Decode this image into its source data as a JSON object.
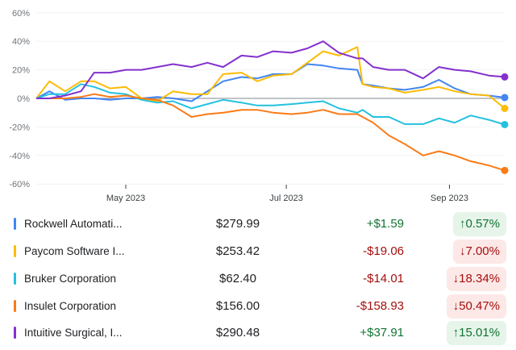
{
  "chart_data": {
    "type": "line",
    "ylabel": "",
    "xlabel": "",
    "ylim": [
      -60,
      60
    ],
    "yticks": [
      "60%",
      "40%",
      "20%",
      "0%",
      "-20%",
      "-40%",
      "-60%"
    ],
    "ytick_values": [
      60,
      40,
      20,
      0,
      -20,
      -40,
      -60
    ],
    "xlim": [
      "2023-03-28",
      "2023-09-22"
    ],
    "xticks": [
      {
        "date": "2023-05-01",
        "label": "May 2023"
      },
      {
        "date": "2023-07-01",
        "label": "Jul 2023"
      },
      {
        "date": "2023-09-01",
        "label": "Sep 2023"
      }
    ],
    "grid": true,
    "x": [
      "2023-03-28",
      "2023-04-02",
      "2023-04-08",
      "2023-04-14",
      "2023-04-19",
      "2023-04-25",
      "2023-05-01",
      "2023-05-07",
      "2023-05-13",
      "2023-05-19",
      "2023-05-26",
      "2023-06-01",
      "2023-06-07",
      "2023-06-14",
      "2023-06-20",
      "2023-06-26",
      "2023-07-03",
      "2023-07-09",
      "2023-07-15",
      "2023-07-21",
      "2023-07-28",
      "2023-07-30",
      "2023-08-03",
      "2023-08-09",
      "2023-08-15",
      "2023-08-22",
      "2023-08-28",
      "2023-09-03",
      "2023-09-09",
      "2023-09-16",
      "2023-09-22"
    ],
    "series": [
      {
        "name": "Rockwell Automati...",
        "color": "#4285f4",
        "values": [
          0,
          5,
          -1,
          0,
          0,
          -1,
          0,
          0,
          1,
          0,
          -2,
          5,
          12,
          15,
          14,
          17,
          17,
          24,
          23,
          21,
          20,
          10,
          9,
          7,
          6,
          8,
          13,
          7,
          3,
          2,
          0.57
        ]
      },
      {
        "name": "Paycom Software I...",
        "color": "#fbbc04",
        "values": [
          0,
          12,
          5,
          12,
          12,
          7,
          8,
          0,
          -2,
          5,
          3,
          3,
          17,
          18,
          12,
          16,
          17,
          25,
          33,
          30,
          36,
          10,
          8,
          7,
          4,
          6,
          8,
          5,
          3,
          2,
          -7
        ]
      },
      {
        "name": "Bruker Corporation",
        "color": "#24c1e0",
        "values": [
          0,
          3,
          3,
          10,
          8,
          4,
          3,
          -1,
          -3,
          -2,
          -7,
          -4,
          -1,
          -3,
          -5,
          -5,
          -4,
          -3,
          -2,
          -7,
          -10,
          -8,
          -13,
          -13,
          -18,
          -18,
          -14,
          -17,
          -12,
          -15,
          -18.34
        ]
      },
      {
        "name": "Insulet Corporation",
        "color": "#fa7b17",
        "values": [
          0,
          0,
          0,
          1,
          3,
          1,
          2,
          0,
          -1,
          -5,
          -13,
          -11,
          -10,
          -8,
          -8,
          -10,
          -11,
          -10,
          -8,
          -11,
          -11,
          -13,
          -17,
          -26,
          -32,
          -40,
          -37,
          -40,
          -44,
          -47,
          -50.47
        ]
      },
      {
        "name": "Intuitive Surgical, I...",
        "color": "#8430ce",
        "values": [
          0,
          0,
          2,
          5,
          18,
          18,
          20,
          20,
          22,
          24,
          22,
          25,
          22,
          30,
          29,
          33,
          32,
          35,
          40,
          32,
          28,
          28,
          22,
          20,
          20,
          14,
          22,
          20,
          19,
          16,
          15.01
        ]
      }
    ]
  },
  "stocks": [
    {
      "name": "Rockwell Automati...",
      "price": "$279.99",
      "change": "+$1.59",
      "percent": "↑0.57%",
      "direction": "up",
      "color": "#4285f4"
    },
    {
      "name": "Paycom Software I...",
      "price": "$253.42",
      "change": "-$19.06",
      "percent": "↓7.00%",
      "direction": "down",
      "color": "#fbbc04"
    },
    {
      "name": "Bruker Corporation",
      "price": "$62.40",
      "change": "-$14.01",
      "percent": "↓18.34%",
      "direction": "down",
      "color": "#24c1e0"
    },
    {
      "name": "Insulet Corporation",
      "price": "$156.00",
      "change": "-$158.93",
      "percent": "↓50.47%",
      "direction": "down",
      "color": "#fa7b17"
    },
    {
      "name": "Intuitive Surgical, I...",
      "price": "$290.48",
      "change": "+$37.91",
      "percent": "↑15.01%",
      "direction": "up",
      "color": "#8430ce"
    }
  ]
}
